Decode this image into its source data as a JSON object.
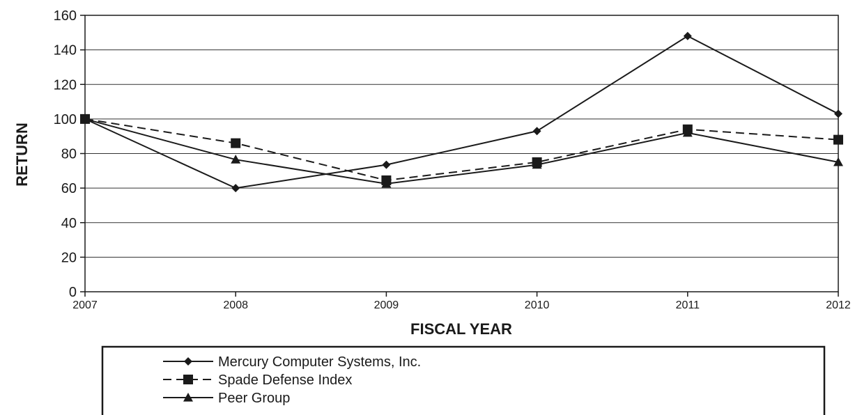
{
  "chart_data": {
    "type": "line",
    "xlabel": "FISCAL YEAR",
    "ylabel": "RETURN",
    "x": [
      "2007",
      "2008",
      "2009",
      "2010",
      "2011",
      "2012"
    ],
    "ylim": [
      0,
      160
    ],
    "yticks": [
      0,
      20,
      40,
      60,
      80,
      100,
      120,
      140,
      160
    ],
    "grid": true,
    "legend_position": "bottom",
    "series": [
      {
        "name": "Mercury Computer Systems, Inc.",
        "marker": "diamond",
        "line": "solid",
        "values": [
          100,
          60,
          73.5,
          93,
          148,
          103
        ]
      },
      {
        "name": "Spade Defense Index",
        "marker": "square",
        "line": "dashed",
        "values": [
          100,
          86,
          64.5,
          75,
          94,
          88
        ]
      },
      {
        "name": "Peer Group",
        "marker": "triangle",
        "line": "solid",
        "values": [
          100,
          76.5,
          62.5,
          73.5,
          92,
          75
        ]
      }
    ],
    "colors": {
      "line": "#1a1a1a",
      "grid": "#333333",
      "background": "#ffffff"
    }
  }
}
